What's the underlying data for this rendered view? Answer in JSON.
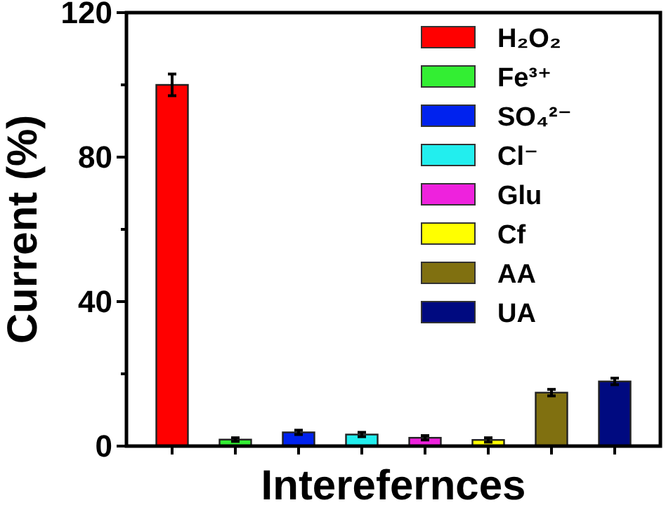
{
  "chart_data": {
    "type": "bar",
    "xlabel": "Interefernces",
    "ylabel": "Current (%)",
    "categories": [
      null,
      null,
      null,
      null,
      null,
      null,
      null,
      null
    ],
    "stacked": true,
    "series": [
      {
        "name": "H₂O₂",
        "color": "#ff0000",
        "values": [
          100,
          0,
          0,
          0,
          0,
          0,
          0,
          0
        ],
        "errors": [
          3,
          null,
          null,
          null,
          null,
          null,
          null,
          null
        ]
      },
      {
        "name": "Fe³⁺",
        "color": "#33ee33",
        "values": [
          0,
          1.8,
          0,
          0,
          0,
          0,
          0,
          0
        ],
        "errors": [
          null,
          0.5,
          null,
          null,
          null,
          null,
          null,
          null
        ]
      },
      {
        "name": "SO₄²⁻",
        "color": "#0022ee",
        "values": [
          0,
          0,
          3.8,
          0,
          0,
          0,
          0,
          0
        ],
        "errors": [
          null,
          null,
          0.6,
          null,
          null,
          null,
          null,
          null
        ]
      },
      {
        "name": "Cl⁻",
        "color": "#22eeee",
        "values": [
          0,
          0,
          0,
          3.2,
          0,
          0,
          0,
          0
        ],
        "errors": [
          null,
          null,
          null,
          0.6,
          null,
          null,
          null,
          null
        ]
      },
      {
        "name": "Glu",
        "color": "#ee22dd",
        "values": [
          0,
          0,
          0,
          0,
          2.3,
          0,
          0,
          0
        ],
        "errors": [
          null,
          null,
          null,
          null,
          0.6,
          null,
          null,
          null
        ]
      },
      {
        "name": "Cf",
        "color": "#ffff00",
        "values": [
          0,
          0,
          0,
          0,
          0,
          1.7,
          0,
          0
        ],
        "errors": [
          null,
          null,
          null,
          null,
          null,
          0.6,
          null,
          null
        ]
      },
      {
        "name": "AA",
        "color": "#807010",
        "values": [
          0,
          0,
          0,
          0,
          0,
          0,
          14.8,
          0
        ],
        "errors": [
          null,
          null,
          null,
          null,
          null,
          null,
          0.9,
          null
        ]
      },
      {
        "name": "UA",
        "color": "#000a80",
        "values": [
          0,
          0,
          0,
          0,
          0,
          0,
          0,
          17.9
        ],
        "errors": [
          null,
          null,
          null,
          null,
          null,
          null,
          null,
          0.9
        ]
      }
    ],
    "tick_labels": "y",
    "ylim": [
      0,
      120
    ],
    "yticks": [
      0,
      {
        "value": 20,
        "label": null
      },
      40,
      {
        "value": 60,
        "label": null
      },
      80,
      {
        "value": 100,
        "label": null
      },
      120
    ],
    "legend": "top right",
    "grid": false
  }
}
